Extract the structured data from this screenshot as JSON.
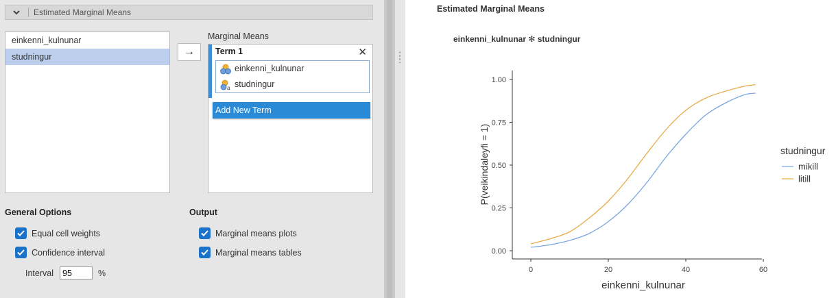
{
  "section": {
    "title": "Estimated Marginal Means"
  },
  "variables": [
    {
      "name": "einkenni_kulnunar",
      "selected": false
    },
    {
      "name": "studningur",
      "selected": true
    }
  ],
  "transfer_button": {
    "icon": "arrow-right-icon",
    "label": "→"
  },
  "marginal_means": {
    "label": "Marginal Means",
    "term": {
      "title": "Term 1",
      "close": "✕",
      "vars": [
        {
          "name": "einkenni_kulnunar",
          "icon": "continuous-variable-icon"
        },
        {
          "name": "studningur",
          "icon": "nominal-variable-icon"
        }
      ]
    },
    "add_term": "Add New Term"
  },
  "general_options": {
    "title": "General Options",
    "equal_cell_weights": {
      "label": "Equal cell weights",
      "checked": true
    },
    "confidence_interval": {
      "label": "Confidence interval",
      "checked": true
    },
    "interval": {
      "label": "Interval",
      "value": "95",
      "unit": "%"
    }
  },
  "output_options": {
    "title": "Output",
    "plots": {
      "label": "Marginal means plots",
      "checked": true
    },
    "tables": {
      "label": "Marginal means tables",
      "checked": true
    }
  },
  "results": {
    "title": "Estimated Marginal Means",
    "plot_title": "einkenni_kulnunar ✻ studningur"
  },
  "colors": {
    "accent": "#2a8ad6",
    "series1": "#7ba6dd",
    "series2": "#e6ac4a"
  },
  "chart_data": {
    "type": "line",
    "xlabel": "einkenni_kulnunar",
    "ylabel": "P(veikindaleyfi = 1)",
    "xlim": [
      0,
      60
    ],
    "ylim": [
      0,
      1
    ],
    "xticks": [
      0,
      20,
      40,
      60
    ],
    "yticks": [
      "0.00",
      "0.25",
      "0.50",
      "0.75",
      "1.00"
    ],
    "legend_title": "studningur",
    "legend_position": "right",
    "x": [
      0,
      5,
      10,
      15,
      20,
      25,
      30,
      35,
      40,
      45,
      50,
      55,
      58
    ],
    "series": [
      {
        "name": "mikill",
        "color": "#7ba6dd",
        "values": [
          0.02,
          0.035,
          0.06,
          0.1,
          0.17,
          0.27,
          0.4,
          0.55,
          0.68,
          0.79,
          0.86,
          0.91,
          0.92
        ]
      },
      {
        "name": "litill",
        "color": "#e6ac4a",
        "values": [
          0.04,
          0.07,
          0.11,
          0.19,
          0.29,
          0.42,
          0.57,
          0.71,
          0.82,
          0.89,
          0.93,
          0.96,
          0.97
        ]
      }
    ]
  }
}
